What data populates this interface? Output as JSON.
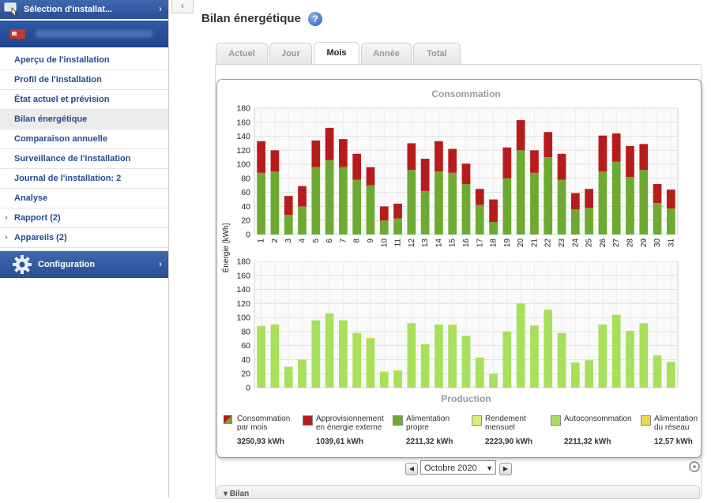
{
  "sidebar": {
    "selection_label": "Sélection d'installat...",
    "items": [
      {
        "label": "Aperçu de l'installation"
      },
      {
        "label": "Profil de l'installation"
      },
      {
        "label": "État actuel et prévision"
      },
      {
        "label": "Bilan énergétique"
      },
      {
        "label": "Comparaison annuelle"
      },
      {
        "label": "Surveillance de l'installation"
      },
      {
        "label": "Journal de l'installation: 2"
      },
      {
        "label": "Analyse"
      }
    ],
    "groups": [
      {
        "label": "Rapport (2)"
      },
      {
        "label": "Appareils (2)"
      }
    ],
    "config_label": "Configuration",
    "active_item": "Bilan énergétique"
  },
  "page": {
    "title": "Bilan énergétique",
    "help": "?"
  },
  "tabs": [
    {
      "label": "Actuel"
    },
    {
      "label": "Jour"
    },
    {
      "label": "Mois"
    },
    {
      "label": "Année"
    },
    {
      "label": "Total"
    }
  ],
  "active_tab": "Mois",
  "month_selector": {
    "value": "Octobre 2020",
    "prev": "◀",
    "next": "▶"
  },
  "bilan_section": {
    "label": "▾ Bilan"
  },
  "colors": {
    "external": "#b71c1c",
    "self_green": "#6eaa32",
    "production": "#a8e05c",
    "grid_feed": "#e9d84a"
  },
  "legend": [
    {
      "label": "Consommation par mois",
      "value": "3250,93 kWh"
    },
    {
      "label": "Approvisionnement en énergie externe",
      "value": "1039,61 kWh"
    },
    {
      "label": "Alimentation propre",
      "value": "2211,32 kWh"
    },
    {
      "label": "Rendement mensuel",
      "value": "2223,90 kWh"
    },
    {
      "label": "Autoconsommation",
      "value": "2211,32 kWh"
    },
    {
      "label": "Alimentation du réseau",
      "value": "12,57 kWh"
    }
  ],
  "chart_data": [
    {
      "type": "bar",
      "stacked": true,
      "title": "Consommation",
      "ylabel": "Énergie [kWh]",
      "ylim": [
        0,
        180
      ],
      "yticks": [
        0,
        20,
        40,
        60,
        80,
        100,
        120,
        140,
        160,
        180
      ],
      "categories": [
        "1",
        "2",
        "3",
        "4",
        "5",
        "6",
        "7",
        "8",
        "9",
        "10",
        "11",
        "12",
        "13",
        "14",
        "15",
        "16",
        "17",
        "18",
        "19",
        "20",
        "21",
        "22",
        "23",
        "24",
        "25",
        "26",
        "27",
        "28",
        "29",
        "30",
        "31"
      ],
      "series": [
        {
          "name": "Alimentation propre",
          "values": [
            88,
            90,
            28,
            40,
            96,
            106,
            96,
            78,
            70,
            20,
            23,
            92,
            62,
            90,
            88,
            72,
            42,
            18,
            80,
            120,
            88,
            110,
            78,
            36,
            38,
            90,
            104,
            82,
            92,
            45,
            37
          ]
        },
        {
          "name": "Approvisionnement en énergie externe",
          "values": [
            45,
            30,
            27,
            29,
            38,
            46,
            40,
            37,
            26,
            20,
            21,
            38,
            46,
            43,
            34,
            29,
            23,
            32,
            44,
            43,
            32,
            36,
            37,
            23,
            27,
            51,
            40,
            44,
            37,
            27,
            27
          ]
        }
      ]
    },
    {
      "type": "bar",
      "stacked": true,
      "title": "Production",
      "ylabel": "Énergie [kWh]",
      "ylim": [
        0,
        180
      ],
      "yticks": [
        0,
        20,
        40,
        60,
        80,
        100,
        120,
        140,
        160,
        180
      ],
      "categories": [
        "1",
        "2",
        "3",
        "4",
        "5",
        "6",
        "7",
        "8",
        "9",
        "10",
        "11",
        "12",
        "13",
        "14",
        "15",
        "16",
        "17",
        "18",
        "19",
        "20",
        "21",
        "22",
        "23",
        "24",
        "25",
        "26",
        "27",
        "28",
        "29",
        "30",
        "31"
      ],
      "series": [
        {
          "name": "Autoconsommation",
          "values": [
            88,
            90,
            30,
            40,
            96,
            106,
            96,
            78,
            70,
            22,
            24,
            92,
            62,
            90,
            89,
            74,
            43,
            20,
            80,
            120,
            88,
            111,
            78,
            36,
            39,
            90,
            104,
            81,
            92,
            46,
            37
          ]
        },
        {
          "name": "Alimentation du réseau",
          "values": [
            0,
            0,
            0,
            0,
            0,
            0,
            0,
            0,
            1,
            1,
            1,
            0,
            0,
            0,
            1,
            0,
            0,
            0,
            0,
            0,
            1,
            0,
            0,
            0,
            0,
            0,
            0,
            0,
            0,
            0,
            0
          ]
        }
      ]
    }
  ]
}
